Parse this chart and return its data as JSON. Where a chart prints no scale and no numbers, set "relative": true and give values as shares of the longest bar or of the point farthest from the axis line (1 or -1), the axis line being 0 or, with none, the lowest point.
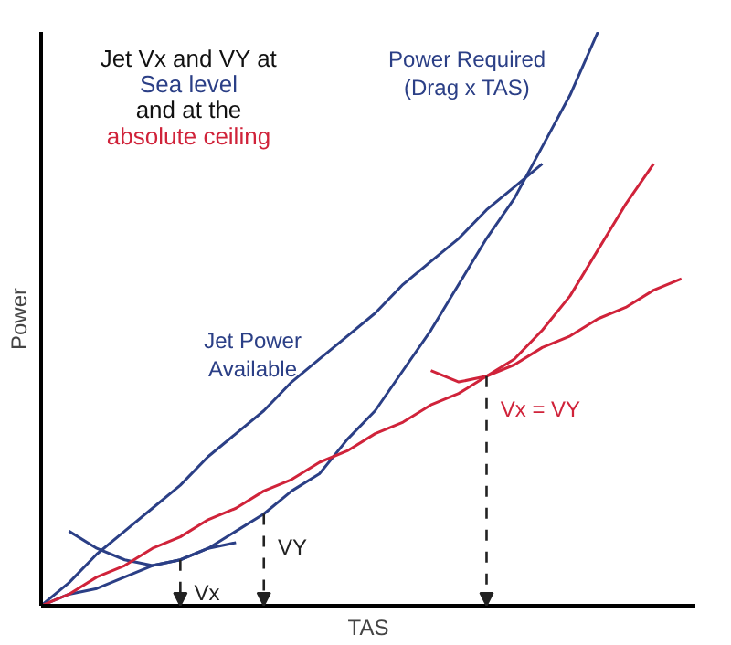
{
  "chart_data": {
    "type": "line",
    "relative": true,
    "xlabel": "TAS",
    "ylabel": "Power",
    "categories": [
      null,
      null,
      null,
      null,
      null,
      null,
      null,
      null,
      null,
      null,
      null,
      null,
      null,
      null,
      null,
      null,
      null,
      null,
      null,
      null,
      null,
      null,
      null,
      null
    ],
    "series": [
      {
        "name": "Jet Power Available",
        "color": "#2b3f86",
        "values": [
          0,
          0.04,
          0.09,
          0.13,
          0.17,
          0.21,
          0.26,
          0.3,
          0.34,
          0.39,
          0.43,
          0.47,
          0.51,
          0.56,
          0.6,
          0.64,
          0.69,
          0.73,
          0.77,
          null,
          null,
          null,
          null,
          null
        ]
      },
      {
        "name": "Power Required (Drag x TAS)",
        "color": "#2b3f86",
        "values": [
          null,
          0.13,
          0.1,
          0.08,
          0.07,
          0.08,
          0.1,
          0.13,
          0.16,
          0.2,
          0.23,
          0.29,
          0.34,
          0.41,
          0.48,
          0.56,
          0.64,
          0.71,
          0.8,
          0.89,
          1.0,
          null,
          null,
          null
        ]
      },
      {
        "color": "#2b3f86",
        "values": [
          0,
          0.02,
          0.03,
          0.05,
          0.07,
          0.08,
          0.1,
          0.11,
          null,
          null,
          null,
          null,
          null,
          null,
          null,
          null,
          null,
          null,
          null,
          null,
          null,
          null,
          null,
          null
        ]
      },
      {
        "color": "#d0233a",
        "values": [
          0,
          0.02,
          0.05,
          0.07,
          0.1,
          0.12,
          0.15,
          0.17,
          0.2,
          0.22,
          0.25,
          0.27,
          0.3,
          0.32,
          0.35,
          0.37,
          0.4,
          0.42,
          0.45,
          0.47,
          0.5,
          0.52,
          0.55,
          0.57
        ]
      },
      {
        "color": "#d0233a",
        "values": [
          null,
          null,
          null,
          null,
          null,
          null,
          null,
          null,
          null,
          null,
          null,
          null,
          null,
          null,
          0.41,
          0.39,
          0.4,
          0.43,
          0.48,
          0.54,
          0.62,
          0.7,
          0.77,
          null
        ]
      }
    ],
    "annotations": [
      "Jet Vx and VY at",
      "Sea level",
      "and at the",
      "absolute ceiling",
      "Vx",
      "VY",
      "Vx = VY"
    ],
    "marker": "none",
    "line_style": "solid"
  }
}
